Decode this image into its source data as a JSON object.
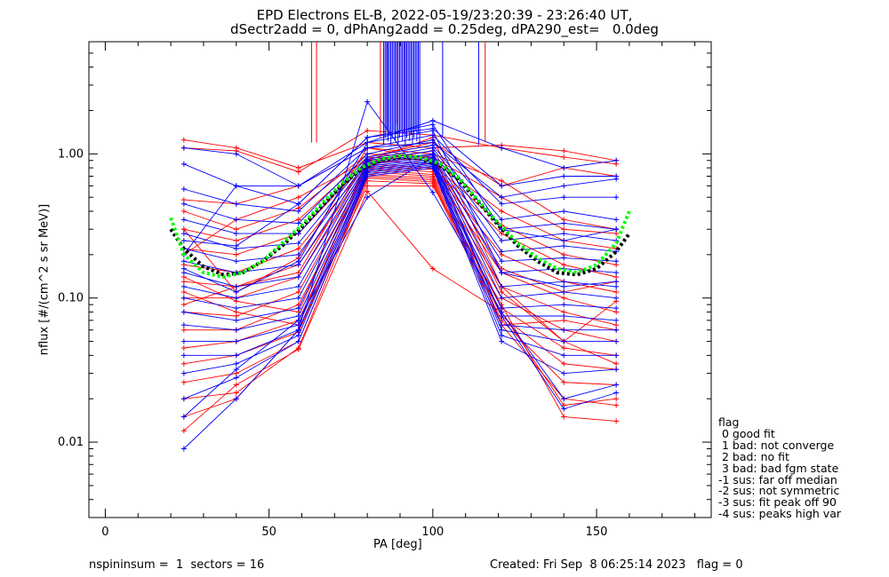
{
  "chart_data": {
    "type": "line",
    "title_line1": "EPD Electrons EL-B, 2022-05-19/23:20:39 - 23:26:40 UT,",
    "title_line2": "dSectr2add = 0, dPhAng2add = 0.25deg, dPA290_est=   0.0deg",
    "xlabel": "PA [deg]",
    "ylabel": "nflux [#/(cm^2 s sr MeV)]",
    "xlim": [
      -5,
      185
    ],
    "ylim": [
      0.003,
      6.0
    ],
    "yscale": "log",
    "x_ticks": [
      0,
      50,
      100,
      150
    ],
    "x_tick_labels": [
      "0",
      "50",
      "100",
      "150"
    ],
    "y_ticks": [
      0.01,
      0.1,
      1.0
    ],
    "y_tick_labels": [
      "0.01",
      "0.10",
      "1.00"
    ],
    "pa_bins": [
      24,
      40,
      59,
      80,
      100,
      121,
      140,
      156
    ],
    "colors": {
      "red": "#ff0000",
      "blue": "#0000ff",
      "fit_black": "#000000",
      "fit_green": "#00ff00"
    },
    "bundles": {
      "red": [
        [
          1.25,
          1.1,
          0.8,
          1.2,
          1.1,
          1.15,
          1.05,
          0.9
        ],
        [
          1.1,
          1.05,
          0.75,
          1.45,
          1.35,
          1.1,
          0.95,
          0.85
        ],
        [
          0.48,
          0.45,
          0.6,
          1.1,
          1.0,
          0.65,
          0.35,
          0.3
        ],
        [
          0.4,
          0.3,
          0.42,
          1.0,
          0.95,
          0.5,
          0.3,
          0.28
        ],
        [
          0.3,
          0.25,
          0.35,
          0.95,
          0.9,
          0.4,
          0.25,
          0.22
        ],
        [
          0.22,
          0.2,
          0.28,
          0.9,
          0.85,
          0.32,
          0.2,
          0.17
        ],
        [
          0.17,
          0.15,
          0.22,
          0.85,
          0.8,
          0.28,
          0.17,
          0.14
        ],
        [
          0.13,
          0.12,
          0.17,
          0.82,
          0.78,
          0.2,
          0.13,
          0.11
        ],
        [
          0.1,
          0.1,
          0.14,
          0.8,
          0.75,
          0.15,
          0.1,
          0.08
        ],
        [
          0.08,
          0.075,
          0.11,
          0.78,
          0.72,
          0.12,
          0.08,
          0.065
        ],
        [
          0.06,
          0.06,
          0.09,
          0.75,
          0.7,
          0.1,
          0.06,
          0.05
        ],
        [
          0.045,
          0.05,
          0.07,
          0.72,
          0.68,
          0.085,
          0.045,
          0.04
        ],
        [
          0.035,
          0.04,
          0.058,
          0.7,
          0.66,
          0.075,
          0.035,
          0.032
        ],
        [
          0.026,
          0.03,
          0.05,
          0.68,
          0.64,
          0.07,
          0.026,
          0.025
        ],
        [
          0.02,
          0.022,
          0.045,
          0.65,
          0.62,
          0.065,
          0.02,
          0.018
        ],
        [
          0.015,
          0.02,
          0.06,
          0.6,
          0.6,
          0.09,
          0.015,
          0.014
        ],
        [
          0.012,
          0.025,
          0.044,
          0.55,
          0.16,
          0.08,
          0.018,
          0.02
        ],
        [
          0.2,
          0.35,
          0.5,
          0.9,
          1.3,
          0.12,
          0.05,
          0.035
        ],
        [
          0.09,
          0.12,
          0.15,
          0.95,
          1.2,
          0.6,
          0.8,
          0.7
        ],
        [
          0.14,
          0.095,
          0.08,
          0.88,
          1.05,
          0.065,
          0.07,
          0.06
        ],
        [
          0.11,
          0.08,
          0.065,
          0.85,
          0.98,
          0.11,
          0.05,
          0.095
        ],
        [
          0.3,
          0.11,
          0.19,
          1.1,
          0.92,
          0.16,
          0.11,
          0.13
        ]
      ],
      "blue": [
        [
          1.1,
          1.0,
          0.6,
          1.2,
          1.7,
          1.1,
          0.8,
          0.9
        ],
        [
          0.85,
          0.6,
          0.45,
          1.3,
          1.5,
          0.6,
          0.7,
          0.7
        ],
        [
          0.57,
          0.45,
          0.4,
          1.1,
          1.35,
          0.45,
          0.5,
          0.5
        ],
        [
          0.45,
          0.35,
          0.33,
          1.0,
          1.25,
          0.35,
          0.4,
          0.35
        ],
        [
          0.35,
          0.28,
          0.28,
          0.95,
          1.15,
          0.3,
          0.33,
          0.3
        ],
        [
          0.28,
          0.22,
          0.24,
          0.92,
          1.1,
          0.25,
          0.28,
          0.25
        ],
        [
          0.22,
          0.18,
          0.2,
          0.9,
          1.05,
          0.21,
          0.23,
          0.21
        ],
        [
          0.18,
          0.15,
          0.17,
          0.88,
          1.0,
          0.18,
          0.19,
          0.18
        ],
        [
          0.15,
          0.12,
          0.14,
          0.86,
          0.98,
          0.15,
          0.16,
          0.15
        ],
        [
          0.12,
          0.1,
          0.12,
          0.84,
          0.95,
          0.12,
          0.13,
          0.12
        ],
        [
          0.1,
          0.085,
          0.1,
          0.82,
          0.92,
          0.1,
          0.11,
          0.1
        ],
        [
          0.08,
          0.07,
          0.085,
          0.8,
          0.9,
          0.085,
          0.09,
          0.085
        ],
        [
          0.065,
          0.06,
          0.075,
          0.78,
          0.88,
          0.075,
          0.075,
          0.07
        ],
        [
          0.05,
          0.05,
          0.065,
          0.76,
          0.86,
          0.065,
          0.06,
          0.06
        ],
        [
          0.04,
          0.04,
          0.06,
          0.74,
          0.84,
          0.06,
          0.05,
          0.05
        ],
        [
          0.03,
          0.035,
          0.055,
          0.72,
          0.82,
          0.055,
          0.04,
          0.04
        ],
        [
          0.02,
          0.028,
          0.05,
          0.7,
          0.8,
          0.05,
          0.03,
          0.032
        ],
        [
          0.009,
          0.02,
          0.06,
          2.3,
          0.54,
          0.08,
          0.02,
          0.025
        ],
        [
          0.015,
          0.032,
          0.07,
          0.5,
          0.95,
          0.075,
          0.017,
          0.022
        ],
        [
          0.25,
          0.23,
          0.45,
          1.3,
          1.6,
          0.3,
          0.25,
          0.3
        ],
        [
          0.2,
          0.6,
          0.6,
          1.1,
          1.2,
          0.5,
          0.6,
          0.67
        ],
        [
          0.16,
          0.11,
          0.18,
          1.2,
          1.45,
          0.15,
          0.12,
          0.13
        ]
      ]
    },
    "red_spikes": [
      {
        "x": 63,
        "y_bottom": 1.2
      },
      {
        "x": 64.5,
        "y_bottom": 1.2
      },
      {
        "x": 84,
        "y_bottom": 1.3
      },
      {
        "x": 86,
        "y_bottom": 1.5
      },
      {
        "x": 89,
        "y_bottom": 1.6
      },
      {
        "x": 91.5,
        "y_bottom": 1.4
      },
      {
        "x": 116,
        "y_bottom": 1.2
      }
    ],
    "blue_spikes": [
      {
        "x_from": 85,
        "x_to": 96,
        "count": 26,
        "y_bottom": 1.15
      },
      {
        "x_from": 103,
        "x_to": 103,
        "count": 1,
        "y_bottom": 1.3
      },
      {
        "x_from": 114,
        "x_to": 114,
        "count": 1,
        "y_bottom": 1.15
      }
    ],
    "fit_black": {
      "name": "",
      "x": [
        20,
        24,
        30,
        36,
        42,
        48,
        54,
        60,
        66,
        72,
        78,
        84,
        90,
        96,
        102,
        108,
        114,
        120,
        126,
        132,
        138,
        144,
        150,
        156,
        160
      ],
      "y": [
        0.3,
        0.22,
        0.165,
        0.145,
        0.15,
        0.18,
        0.23,
        0.31,
        0.43,
        0.6,
        0.78,
        0.9,
        0.95,
        0.93,
        0.84,
        0.66,
        0.46,
        0.32,
        0.23,
        0.18,
        0.15,
        0.145,
        0.16,
        0.21,
        0.28
      ]
    },
    "fit_green": {
      "name": "",
      "x": [
        20,
        24,
        30,
        36,
        42,
        48,
        54,
        60,
        66,
        72,
        78,
        84,
        90,
        96,
        102,
        108,
        114,
        120,
        126,
        132,
        138,
        144,
        150,
        156,
        160
      ],
      "y": [
        0.36,
        0.2,
        0.15,
        0.14,
        0.15,
        0.18,
        0.24,
        0.32,
        0.45,
        0.62,
        0.8,
        0.92,
        0.97,
        0.95,
        0.86,
        0.68,
        0.47,
        0.33,
        0.24,
        0.19,
        0.16,
        0.15,
        0.17,
        0.24,
        0.4
      ]
    }
  },
  "legend": {
    "title": "flag",
    "items": [
      " 0 good fit",
      " 1 bad: not converge",
      " 2 bad: no fit",
      " 3 bad: bad fgm state",
      "-1 sus: far off median",
      "-2 sus: not symmetric",
      "-3 sus: fit peak off 90",
      "-4 sus: peaks high var"
    ]
  },
  "footer": {
    "left": "nspininsum =  1  sectors = 16",
    "right": "Created: Fri Sep  8 06:25:14 2023   flag = 0"
  }
}
